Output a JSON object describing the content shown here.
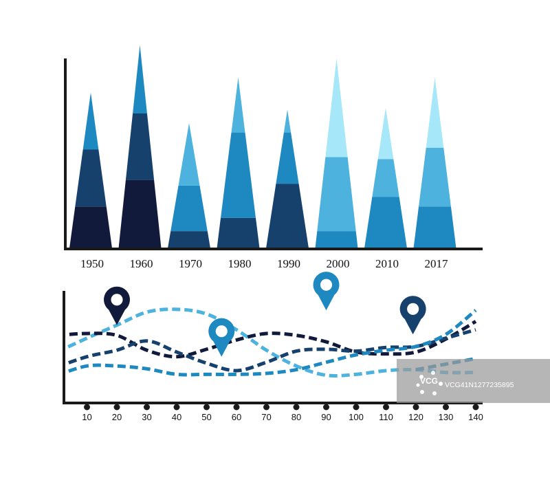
{
  "colors": {
    "navy": "#111a3a",
    "dark_blue": "#16416d",
    "medium_blue": "#1e88c0",
    "light_blue": "#4db3de",
    "pale_blue": "#a6e8fa",
    "axis": "#1a1a1a",
    "watermark_bg": "#9a9a9a"
  },
  "chart_data": [
    {
      "type": "bar",
      "subtype": "stacked-triangle",
      "categories": [
        "1950",
        "1960",
        "1970",
        "1980",
        "1990",
        "2000",
        "2010",
        "2017"
      ],
      "ylim": [
        0,
        100
      ],
      "series_segments": [
        [
          {
            "value": 22,
            "color": "#111a3a"
          },
          {
            "value": 30,
            "color": "#16416d"
          },
          {
            "value": 30,
            "color": "#1e88c0"
          }
        ],
        [
          {
            "value": 36,
            "color": "#111a3a"
          },
          {
            "value": 35,
            "color": "#16416d"
          },
          {
            "value": 36,
            "color": "#1e88c0"
          }
        ],
        [
          {
            "value": 9,
            "color": "#16416d"
          },
          {
            "value": 24,
            "color": "#1e88c0"
          },
          {
            "value": 33,
            "color": "#4db3de"
          }
        ],
        [
          {
            "value": 16,
            "color": "#16416d"
          },
          {
            "value": 45,
            "color": "#1e88c0"
          },
          {
            "value": 29,
            "color": "#4db3de"
          }
        ],
        [
          {
            "value": 34,
            "color": "#16416d"
          },
          {
            "value": 27,
            "color": "#1e88c0"
          },
          {
            "value": 12,
            "color": "#4db3de"
          }
        ],
        [
          {
            "value": 9,
            "color": "#1e88c0"
          },
          {
            "value": 39,
            "color": "#4db3de"
          },
          {
            "value": 52,
            "color": "#a6e8fa"
          }
        ],
        [
          {
            "value": 27,
            "color": "#1e88c0"
          },
          {
            "value": 20,
            "color": "#4db3de"
          },
          {
            "value": 27,
            "color": "#a6e8fa"
          }
        ],
        [
          {
            "value": 22,
            "color": "#1e88c0"
          },
          {
            "value": 31,
            "color": "#4db3de"
          },
          {
            "value": 37,
            "color": "#a6e8fa"
          }
        ]
      ]
    },
    {
      "type": "line",
      "style": "dashed",
      "x_ticks": [
        10,
        20,
        30,
        40,
        50,
        60,
        70,
        80,
        90,
        100,
        110,
        120,
        130,
        140
      ],
      "xlim": [
        0,
        143
      ],
      "ylim": [
        0,
        100
      ],
      "series": [
        {
          "color": "#4db3de",
          "x": [
            0,
            10,
            20,
            30,
            40,
            50,
            60,
            70,
            80,
            90,
            100,
            110,
            120,
            130,
            140
          ],
          "y": [
            43,
            58,
            72,
            86,
            89,
            84,
            67,
            45,
            28,
            18,
            19,
            23,
            24,
            21,
            21
          ]
        },
        {
          "color": "#111a3a",
          "x": [
            0,
            10,
            20,
            30,
            40,
            50,
            60,
            70,
            80,
            90,
            100,
            110,
            120,
            130,
            140
          ],
          "y": [
            61,
            63,
            61,
            45,
            38,
            46,
            56,
            63,
            61,
            54,
            43,
            41,
            43,
            57,
            76
          ]
        },
        {
          "color": "#16416d",
          "x": [
            0,
            10,
            20,
            30,
            40,
            50,
            60,
            70,
            80,
            90,
            100,
            110,
            120,
            130,
            140
          ],
          "y": [
            27,
            38,
            45,
            55,
            43,
            31,
            23,
            32,
            44,
            46,
            44,
            48,
            49,
            58,
            67
          ]
        },
        {
          "color": "#1e88c0",
          "x": [
            0,
            10,
            20,
            30,
            40,
            50,
            60,
            70,
            80,
            90,
            100,
            110,
            120,
            130,
            140
          ],
          "y": [
            18,
            28,
            28,
            25,
            19,
            19,
            19,
            20,
            24,
            32,
            40,
            45,
            49,
            62,
            88
          ]
        },
        {
          "color": "#1e88c0",
          "x": [
            120,
            130,
            140
          ],
          "y": [
            24,
            30,
            36
          ]
        }
      ],
      "markers": [
        {
          "x": 20,
          "y": 72,
          "color": "#111a3a"
        },
        {
          "x": 55,
          "y": 38,
          "color": "#1e88c0"
        },
        {
          "x": 90,
          "y": 88,
          "color": "#1e88c0"
        },
        {
          "x": 119,
          "y": 62,
          "color": "#16416d"
        }
      ]
    }
  ],
  "watermark": {
    "logo": "VCG",
    "text": "VCG41N1277235895"
  }
}
